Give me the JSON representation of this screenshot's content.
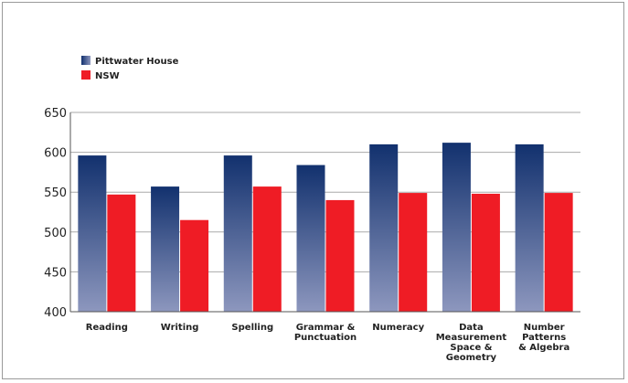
{
  "chart_data": {
    "type": "bar",
    "categories": [
      [
        "Reading"
      ],
      [
        "Writing"
      ],
      [
        "Spelling"
      ],
      [
        "Grammar &",
        "Punctuation"
      ],
      [
        "Numeracy"
      ],
      [
        "Data",
        "Measurement",
        "Space &",
        "Geometry"
      ],
      [
        "Number",
        "Patterns",
        "& Algebra"
      ]
    ],
    "series": [
      {
        "name": "Pittwater House",
        "values": [
          596,
          557,
          596,
          584,
          610,
          612,
          610
        ]
      },
      {
        "name": "NSW",
        "values": [
          547,
          515,
          557,
          540,
          549,
          548,
          549
        ]
      }
    ],
    "ylim": [
      400,
      650
    ],
    "yticks": [
      400,
      450,
      500,
      550,
      600,
      650
    ],
    "grid": true,
    "legend_position": "top-left",
    "colors": {
      "series1_top": "#12316e",
      "series1_bottom": "#8d97be",
      "series2": "#ef1c25",
      "grid": "#aaaaaa",
      "axis": "#555555"
    }
  }
}
